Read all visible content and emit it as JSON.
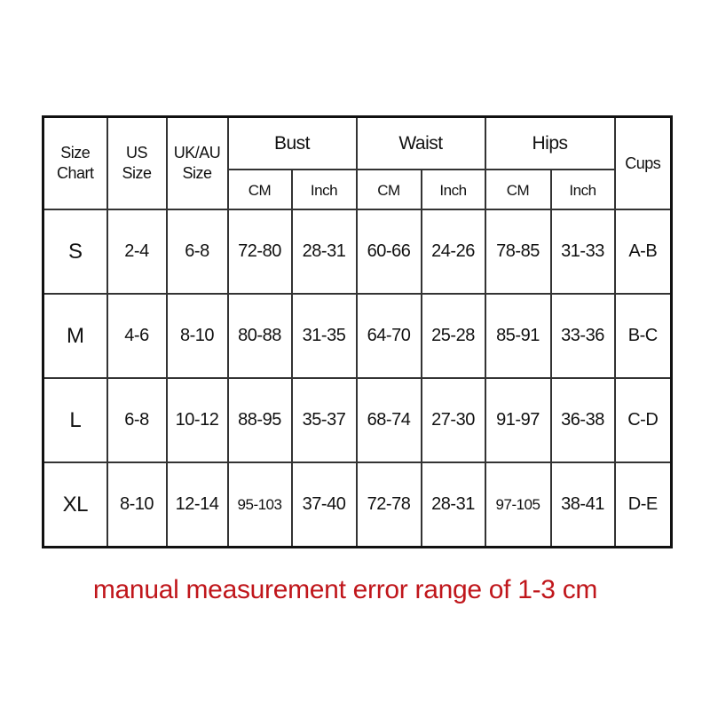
{
  "headers": {
    "size_chart": [
      "Size",
      "Chart"
    ],
    "us_size": [
      "US",
      "Size"
    ],
    "ukau_size": [
      "UK/AU",
      "Size"
    ],
    "bust": "Bust",
    "waist": "Waist",
    "hips": "Hips",
    "cups": "Cups",
    "cm": "CM",
    "inch": "Inch"
  },
  "rows": [
    {
      "size": "S",
      "us": "2-4",
      "ukau": "6-8",
      "bust_cm": "72-80",
      "bust_in": "28-31",
      "waist_cm": "60-66",
      "waist_in": "24-26",
      "hips_cm": "78-85",
      "hips_in": "31-33",
      "cups": "A-B"
    },
    {
      "size": "M",
      "us": "4-6",
      "ukau": "8-10",
      "bust_cm": "80-88",
      "bust_in": "31-35",
      "waist_cm": "64-70",
      "waist_in": "25-28",
      "hips_cm": "85-91",
      "hips_in": "33-36",
      "cups": "B-C"
    },
    {
      "size": "L",
      "us": "6-8",
      "ukau": "10-12",
      "bust_cm": "88-95",
      "bust_in": "35-37",
      "waist_cm": "68-74",
      "waist_in": "27-30",
      "hips_cm": "91-97",
      "hips_in": "36-38",
      "cups": "C-D"
    },
    {
      "size": "XL",
      "us": "8-10",
      "ukau": "12-14",
      "bust_cm": "95-103",
      "bust_in": "37-40",
      "waist_cm": "72-78",
      "waist_in": "28-31",
      "hips_cm": "97-105",
      "hips_in": "38-41",
      "cups": "D-E"
    }
  ],
  "note": "manual measurement error range of 1-3 cm",
  "note_color": "#c0161b"
}
